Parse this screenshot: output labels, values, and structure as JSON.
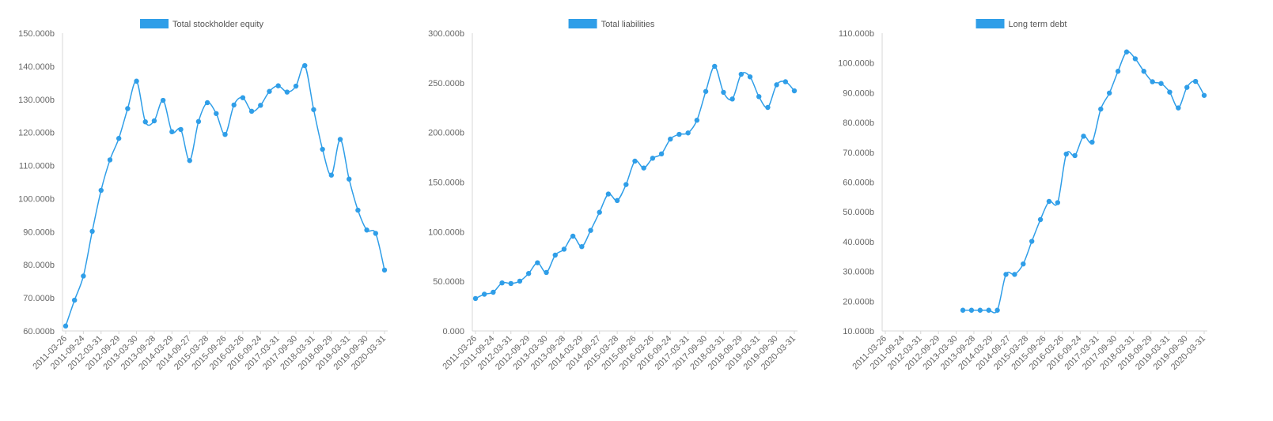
{
  "colors": {
    "series": "#2f9ee8",
    "axis": "#d7d7d7",
    "text": "#666666",
    "legend_text": "#555555"
  },
  "chart_data": [
    {
      "type": "line",
      "legend": "Total stockholder equity",
      "legend_position": "top-center",
      "grid": false,
      "ylim": [
        60,
        150
      ],
      "yticks": [
        60,
        70,
        80,
        90,
        100,
        110,
        120,
        130,
        140,
        150
      ],
      "ytick_labels": [
        "60.000b",
        "70.000b",
        "80.000b",
        "90.000b",
        "100.000b",
        "110.000b",
        "120.000b",
        "130.000b",
        "140.000b",
        "150.000b"
      ],
      "xtick_labels": [
        "2011-03-26",
        "2011-09-24",
        "2012-03-31",
        "2012-09-29",
        "2013-03-30",
        "2013-09-28",
        "2014-03-29",
        "2014-09-27",
        "2015-03-28",
        "2015-09-26",
        "2016-03-26",
        "2016-09-24",
        "2017-03-31",
        "2017-09-30",
        "2018-03-31",
        "2018-09-29",
        "2019-03-31",
        "2019-09-30",
        "2020-03-31"
      ],
      "values": [
        61.5,
        69.3,
        76.6,
        90.1,
        102.5,
        111.7,
        118.2,
        127.2,
        135.5,
        123.2,
        123.5,
        129.7,
        120.2,
        120.9,
        111.5,
        123.3,
        129.0,
        125.7,
        119.4,
        128.3,
        130.5,
        126.4,
        128.2,
        132.4,
        134.1,
        132.2,
        134.0,
        140.2,
        126.9,
        114.9,
        107.1,
        117.9,
        105.9,
        96.5,
        90.5,
        89.5,
        78.4
      ]
    },
    {
      "type": "line",
      "legend": "Total liabilities",
      "legend_position": "top-center",
      "grid": false,
      "ylim": [
        0,
        300
      ],
      "yticks": [
        0,
        50,
        100,
        150,
        200,
        250,
        300
      ],
      "ytick_labels": [
        "0.000",
        "50.000b",
        "100.000b",
        "150.000b",
        "200.000b",
        "250.000b",
        "300.000b"
      ],
      "xtick_labels": [
        "2011-03-26",
        "2011-09-24",
        "2012-03-31",
        "2012-09-29",
        "2013-03-30",
        "2013-09-28",
        "2014-03-29",
        "2014-09-27",
        "2015-03-28",
        "2015-09-26",
        "2016-03-26",
        "2016-09-24",
        "2017-03-31",
        "2017-09-30",
        "2018-03-31",
        "2018-09-29",
        "2019-03-31",
        "2019-09-30",
        "2020-03-31"
      ],
      "values": [
        32.7,
        37.0,
        39.0,
        48.4,
        47.8,
        50.2,
        57.9,
        68.7,
        58.9,
        76.4,
        82.4,
        95.5,
        85.0,
        101.3,
        119.6,
        138.0,
        131.4,
        147.5,
        171.1,
        164.2,
        174.0,
        178.4,
        193.3,
        198.1,
        199.5,
        212.3,
        241.3,
        266.6,
        240.4,
        233.7,
        258.6,
        256.0,
        236.1,
        225.2,
        248.0,
        251.1,
        241.9
      ]
    },
    {
      "type": "line",
      "legend": "Long term debt",
      "legend_position": "top-center",
      "grid": false,
      "ylim": [
        10,
        110
      ],
      "yticks": [
        10,
        20,
        30,
        40,
        50,
        60,
        70,
        80,
        90,
        100,
        110
      ],
      "ytick_labels": [
        "10.000b",
        "20.000b",
        "30.000b",
        "40.000b",
        "50.000b",
        "60.000b",
        "70.000b",
        "80.000b",
        "90.000b",
        "100.000b",
        "110.000b"
      ],
      "xtick_labels": [
        "2011-03-26",
        "2011-09-24",
        "2012-03-31",
        "2012-09-29",
        "2013-03-30",
        "2013-09-28",
        "2014-03-29",
        "2014-09-27",
        "2015-03-28",
        "2015-09-26",
        "2016-03-26",
        "2016-09-24",
        "2017-03-31",
        "2017-09-30",
        "2018-03-31",
        "2018-09-29",
        "2019-03-31",
        "2019-09-30",
        "2020-03-31"
      ],
      "values": [
        null,
        null,
        null,
        null,
        null,
        null,
        null,
        null,
        null,
        16.96,
        16.96,
        16.96,
        16.96,
        16.96,
        28.99,
        28.99,
        32.5,
        40.1,
        47.4,
        53.5,
        53.1,
        69.4,
        68.9,
        75.4,
        73.4,
        84.5,
        89.9,
        97.2,
        103.7,
        101.4,
        97.2,
        93.7,
        93.1,
        90.2,
        84.9,
        91.8,
        93.8,
        89.1
      ]
    }
  ]
}
